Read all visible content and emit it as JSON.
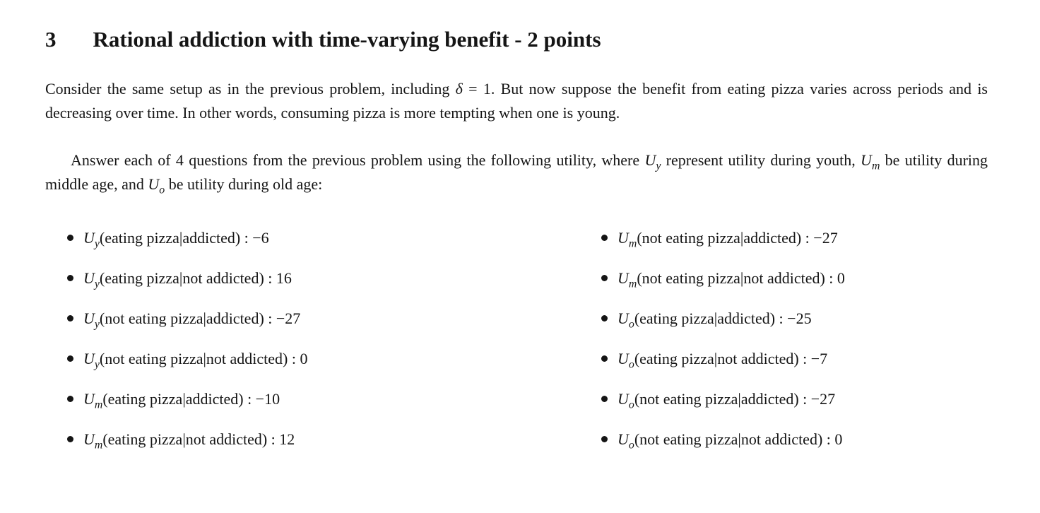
{
  "page": {
    "background": "#ffffff",
    "text_color": "#151515"
  },
  "section": {
    "number": "3",
    "title": "Rational addiction with time-varying benefit - 2 points"
  },
  "paragraph1": {
    "segments": [
      {
        "text": "Consider the same setup as in the previous problem, including "
      },
      {
        "text": "δ",
        "math": true
      },
      {
        "text": " = 1. But now suppose the benefit from eating pizza varies across periods and is decreasing over time. In other words, consuming pizza is more tempting when one is young."
      }
    ]
  },
  "paragraph2": {
    "segments": [
      {
        "text": "Answer each of 4 questions from the previous problem using the following utility, where "
      },
      {
        "text": "U",
        "math": true,
        "sub": "y"
      },
      {
        "text": " represent utility during youth, "
      },
      {
        "text": "U",
        "math": true,
        "sub": "m"
      },
      {
        "text": " be utility during middle age, and "
      },
      {
        "text": "U",
        "math": true,
        "sub": "o"
      },
      {
        "text": " be utility during old age:"
      }
    ]
  },
  "utility_list": {
    "left_column": [
      {
        "symbol": "U",
        "sub": "y",
        "condition": "(eating pizza|addicted)",
        "value": "−6"
      },
      {
        "symbol": "U",
        "sub": "y",
        "condition": "(eating pizza|not addicted)",
        "value": "16"
      },
      {
        "symbol": "U",
        "sub": "y",
        "condition": "(not eating pizza|addicted)",
        "value": "−27"
      },
      {
        "symbol": "U",
        "sub": "y",
        "condition": "(not eating pizza|not addicted)",
        "value": "0"
      },
      {
        "symbol": "U",
        "sub": "m",
        "condition": "(eating pizza|addicted)",
        "value": "−10"
      },
      {
        "symbol": "U",
        "sub": "m",
        "condition": "(eating pizza|not addicted)",
        "value": "12"
      }
    ],
    "right_column": [
      {
        "symbol": "U",
        "sub": "m",
        "condition": "(not eating pizza|addicted)",
        "value": "−27"
      },
      {
        "symbol": "U",
        "sub": "m",
        "condition": "(not eating pizza|not addicted)",
        "value": "0"
      },
      {
        "symbol": "U",
        "sub": "o",
        "condition": "(eating pizza|addicted)",
        "value": "−25"
      },
      {
        "symbol": "U",
        "sub": "o",
        "condition": "(eating pizza|not addicted)",
        "value": "−7"
      },
      {
        "symbol": "U",
        "sub": "o",
        "condition": "(not eating pizza|addicted)",
        "value": "−27"
      },
      {
        "symbol": "U",
        "sub": "o",
        "condition": "(not eating pizza|not addicted)",
        "value": "0"
      }
    ]
  }
}
